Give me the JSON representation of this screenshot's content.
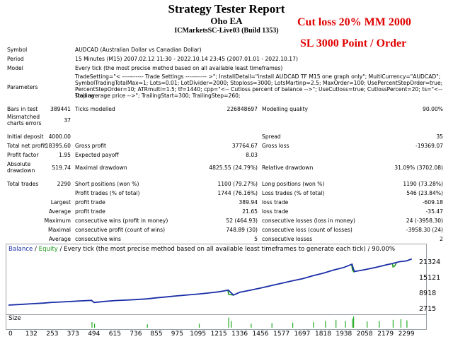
{
  "header": {
    "title": "Strategy Tester Report",
    "ea_name": "Oho EA",
    "server": "ICMarketsSC-Live03 (Build 1353)",
    "annotation_line1": "Cut loss 20% MM 2000",
    "annotation_line2": "SL 3000 Point / Order"
  },
  "colors": {
    "balance": "#1a2ea8",
    "equity": "#1f9b1f",
    "annotation": "#e00000",
    "size_bars": "#22aa22"
  },
  "report": {
    "symbol_label": "Symbol",
    "symbol_value": "AUDCAD (Australian Dollar vs Canadian Dollar)",
    "period_label": "Period",
    "period_value": "15 Minutes (M15) 2007.02.12 11:30 - 2022.10.14 23:45 (2007.01.01 - 2022.10.17)",
    "model_label": "Model",
    "model_value": "Every tick (the most precise method based on all available least timeframes)",
    "parameters_label": "Parameters",
    "parameters_line1": "TradeSetting=\"< ----------- Trade Settings ----------- >\"; InstallDetail=\"install AUDCAD TF M15 one graph only\"; MultiCurrency=\"AUDCAD\";",
    "parameters_line2": "SymbolTradingTotalMax=1; Lots=0.01; LotDivider=2000; Stoploss=3000; LotsMartinp=2.5; MaxOrder=100; UsePercentStepOrder=true;",
    "parameters_line3": "PercentStepOrder=10; ATRmulti=1.5; tf=1440; cpp=\"<-- Cutloss percent of balance -->\"; UseCutloss=true; CutlossPercent=20; ts=\"<-- Trailing",
    "parameters_line4": "stop average price -->\"; TrailingStart=300; TrailingStep=260;",
    "bars_label": "Bars in test",
    "bars_value": "389441",
    "ticks_label": "Ticks modelled",
    "ticks_value": "226848697",
    "quality_label": "Modelling quality",
    "quality_value": "90.00%",
    "mismatch_label_1": "Mismatched",
    "mismatch_label_2": "charts errors",
    "mismatch_value": "37",
    "deposit_label": "Initial deposit",
    "deposit_value": "4000.00",
    "spread_label": "Spread",
    "spread_value": "35",
    "netprofit_label": "Total net profit",
    "netprofit_value": "18395.60",
    "grossprofit_label": "Gross profit",
    "grossprofit_value": "37764.67",
    "grossloss_label": "Gross loss",
    "grossloss_value": "-19369.07",
    "pf_label": "Profit factor",
    "pf_value": "1.95",
    "payoff_label": "Expected payoff",
    "payoff_value": "8.03",
    "absdd_label_1": "Absolute",
    "absdd_label_2": "drawdown",
    "absdd_value": "519.74",
    "maxdd_label": "Maximal drawdown",
    "maxdd_value": "4825.55 (24.79%)",
    "reldd_label": "Relative drawdown",
    "reldd_value": "31.09% (3702.08)",
    "trades_label": "Total trades",
    "trades_value": "2290",
    "short_label": "Short positions (won %)",
    "short_value": "1100 (79.27%)",
    "long_label": "Long positions (won %)",
    "long_value": "1190 (73.28%)",
    "profittrades_label": "Profit trades (% of total)",
    "profittrades_value": "1744 (76.16%)",
    "losstrades_label": "Loss trades (% of total)",
    "losstrades_value": "546 (23.84%)",
    "largest_label": "Largest",
    "largest_profit_label": "profit trade",
    "largest_profit_value": "389.94",
    "largest_loss_label": "loss trade",
    "largest_loss_value": "-609.18",
    "average_label": "Average",
    "average_profit_label": "profit trade",
    "average_profit_value": "21.65",
    "average_loss_label": "loss trade",
    "average_loss_value": "-35.47",
    "maximum_label": "Maximum",
    "max_wins_label": "consecutive wins (profit in money)",
    "max_wins_value": "52 (464.93)",
    "max_losses_label": "consecutive losses (loss in money)",
    "max_losses_value": "24 (-3958.30)",
    "maximal_label": "Maximal",
    "maximal_profit_label": "consecutive profit (count of wins)",
    "maximal_profit_value": "748.89 (30)",
    "maximal_loss_label": "consecutive loss (count of losses)",
    "maximal_loss_value": "-3958.30 (24)",
    "average2_label": "Average",
    "avg_wins_label": "consecutive wins",
    "avg_wins_value": "5",
    "avg_losses_label": "consecutive losses",
    "avg_losses_value": "2"
  },
  "chart_data": {
    "type": "line",
    "legend_balance": "Balance",
    "legend_sep": " / ",
    "legend_equity": "Equity",
    "legend_rest": " / Every tick (the most precise method based on all available least timeframes to generate each tick) / 90.00%",
    "size_label": "Size",
    "y_ticks": [
      "21324",
      "15121",
      "8918",
      "2715"
    ],
    "y_tick_values": [
      21324,
      15121,
      8918,
      2715
    ],
    "ylim": [
      1200,
      23700
    ],
    "x_ticks": [
      "0",
      "132",
      "253",
      "373",
      "494",
      "615",
      "736",
      "855",
      "975",
      "1095",
      "1215",
      "1336",
      "1456",
      "1577",
      "1697",
      "1818",
      "1938",
      "2058",
      "2179",
      "2299"
    ],
    "x_tick_values": [
      0,
      132,
      253,
      373,
      494,
      615,
      736,
      855,
      975,
      1095,
      1215,
      1336,
      1456,
      1577,
      1697,
      1818,
      1938,
      2058,
      2179,
      2299
    ],
    "xlim": [
      0,
      2360
    ],
    "series": [
      {
        "name": "Balance",
        "x": [
          0,
          60,
          132,
          200,
          253,
          300,
          373,
          420,
          480,
          494,
          560,
          615,
          680,
          736,
          800,
          855,
          900,
          975,
          1040,
          1095,
          1150,
          1215,
          1250,
          1270,
          1300,
          1336,
          1400,
          1456,
          1520,
          1577,
          1640,
          1697,
          1760,
          1818,
          1880,
          1938,
          1985,
          1995,
          2000,
          2058,
          2120,
          2179,
          2220,
          2260,
          2299,
          2330
        ],
        "values": [
          4000,
          4250,
          4550,
          4800,
          5100,
          5250,
          5500,
          5700,
          5900,
          5050,
          5500,
          5800,
          6000,
          6200,
          6500,
          6900,
          7200,
          7700,
          8100,
          8400,
          8800,
          9300,
          9700,
          10000,
          8000,
          9100,
          10000,
          10800,
          11800,
          12700,
          13700,
          14500,
          15700,
          16700,
          18000,
          19000,
          20300,
          18000,
          17400,
          18100,
          19000,
          20000,
          20600,
          21300,
          21600,
          22400
        ]
      }
    ],
    "equity_dips": [
      {
        "x": [
          1268,
          1272,
          1290,
          1300
        ],
        "values": [
          10000,
          8300,
          8100,
          8000
        ]
      },
      {
        "x": [
          1983,
          1988,
          1996,
          2000
        ],
        "values": [
          20300,
          17900,
          17200,
          17400
        ]
      },
      {
        "x": [
          2218,
          2222,
          2232,
          2240
        ],
        "values": [
          20600,
          19200,
          19600,
          20700
        ]
      }
    ],
    "size_bars": [
      {
        "x": 480,
        "v": 0.5
      },
      {
        "x": 495,
        "v": 0.35
      },
      {
        "x": 800,
        "v": 0.3
      },
      {
        "x": 1100,
        "v": 0.35
      },
      {
        "x": 1270,
        "v": 0.9
      },
      {
        "x": 1285,
        "v": 0.6
      },
      {
        "x": 1400,
        "v": 0.35
      },
      {
        "x": 1520,
        "v": 0.4
      },
      {
        "x": 1640,
        "v": 0.45
      },
      {
        "x": 1760,
        "v": 0.5
      },
      {
        "x": 1830,
        "v": 0.6
      },
      {
        "x": 1890,
        "v": 0.7
      },
      {
        "x": 1945,
        "v": 0.6
      },
      {
        "x": 1985,
        "v": 0.8
      },
      {
        "x": 1992,
        "v": 1.0
      },
      {
        "x": 2070,
        "v": 0.55
      },
      {
        "x": 2140,
        "v": 0.6
      },
      {
        "x": 2220,
        "v": 0.7
      },
      {
        "x": 2265,
        "v": 0.75
      },
      {
        "x": 2300,
        "v": 0.65
      }
    ]
  }
}
